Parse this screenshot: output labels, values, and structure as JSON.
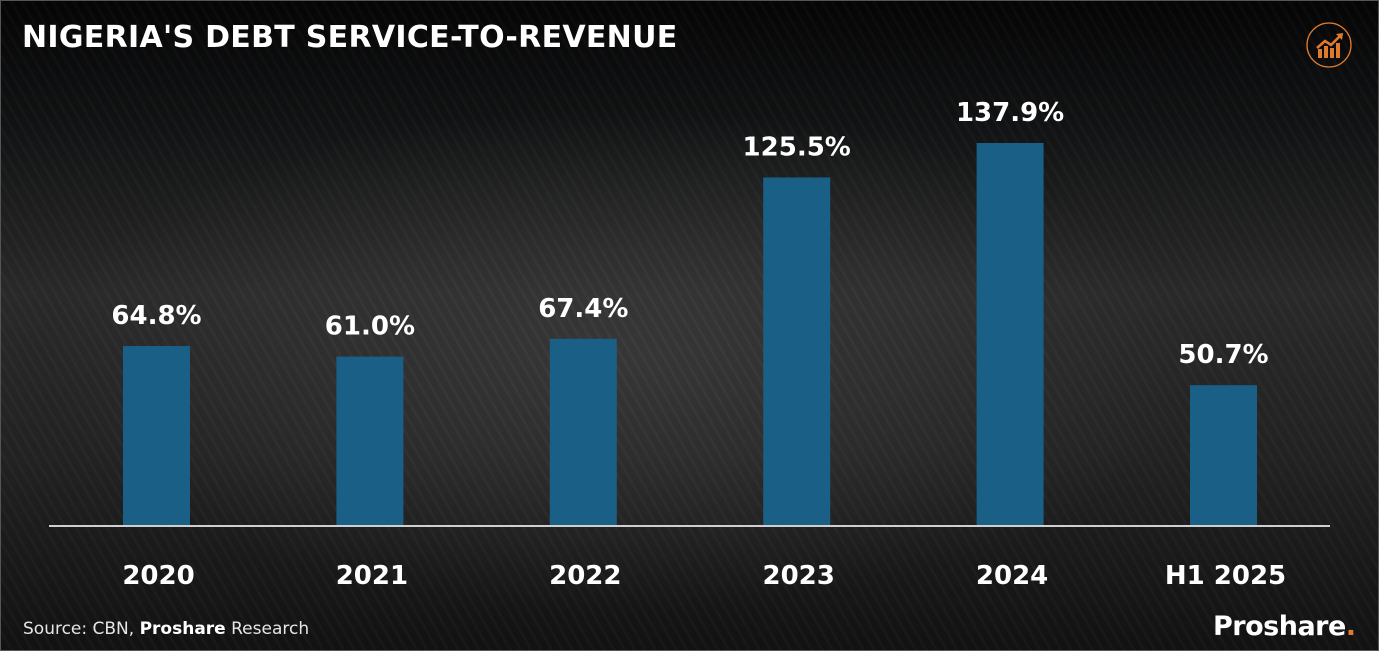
{
  "header": {
    "title": "NIGERIA'S DEBT SERVICE-TO-REVENUE",
    "icon": "growth-chart-icon"
  },
  "footer": {
    "source_prefix": "Source: CBN, ",
    "source_brand": "Proshare",
    "source_suffix": " Research",
    "brand_name": "Proshare",
    "brand_dot": "."
  },
  "colors": {
    "bar": "#1a5f85",
    "accent": "#e07b2e",
    "axis": "#cfcfcf",
    "text": "#ffffff"
  },
  "chart_data": {
    "type": "bar",
    "title": "NIGERIA'S DEBT SERVICE-TO-REVENUE",
    "xlabel": "",
    "ylabel": "",
    "categories": [
      "2020",
      "2021",
      "2022",
      "2023",
      "2024",
      "H1 2025"
    ],
    "values": [
      64.8,
      61.0,
      67.4,
      125.5,
      137.9,
      50.7
    ],
    "data_labels": [
      "64.8%",
      "61.0%",
      "67.4%",
      "125.5%",
      "137.9%",
      "50.7%"
    ],
    "unit": "%",
    "ylim": [
      0,
      137.9
    ],
    "grid": false,
    "legend": "none"
  }
}
